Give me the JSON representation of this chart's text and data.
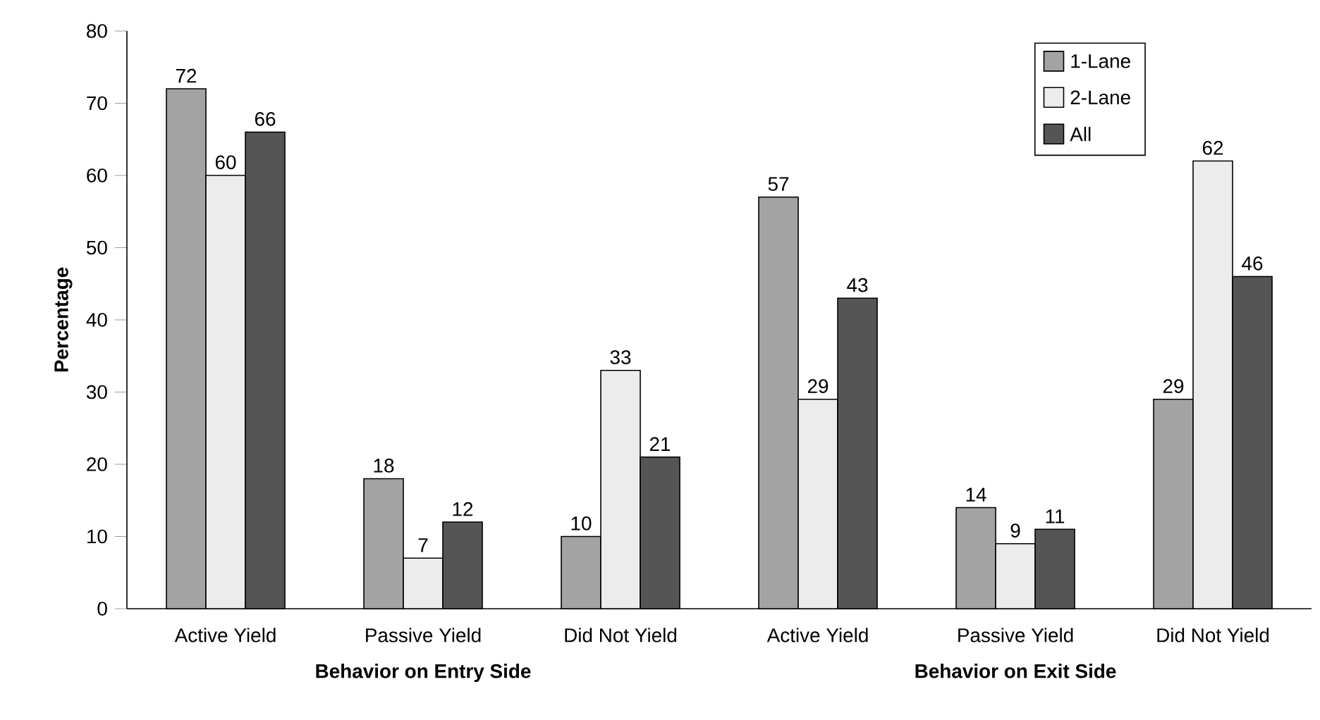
{
  "chart_data": {
    "type": "bar",
    "ylabel": "Percentage",
    "categories": [
      "Active Yield",
      "Passive Yield",
      "Did Not Yield",
      "Active Yield",
      "Passive Yield",
      "Did Not Yield"
    ],
    "series": [
      {
        "name": "1-Lane",
        "color": "#a3a3a3",
        "values": [
          72,
          18,
          10,
          57,
          14,
          29
        ]
      },
      {
        "name": "2-Lane",
        "color": "#ececec",
        "values": [
          60,
          7,
          33,
          29,
          9,
          62
        ]
      },
      {
        "name": "All",
        "color": "#555555",
        "values": [
          66,
          12,
          21,
          43,
          11,
          46
        ]
      }
    ],
    "ylim": [
      0,
      80
    ],
    "yticks": [
      0,
      10,
      20,
      30,
      40,
      50,
      60,
      70,
      80
    ],
    "data_labels": true,
    "legend": "top right",
    "grid": false,
    "annotations": [
      "Behavior on Entry Side",
      "Behavior on Exit Side"
    ]
  }
}
